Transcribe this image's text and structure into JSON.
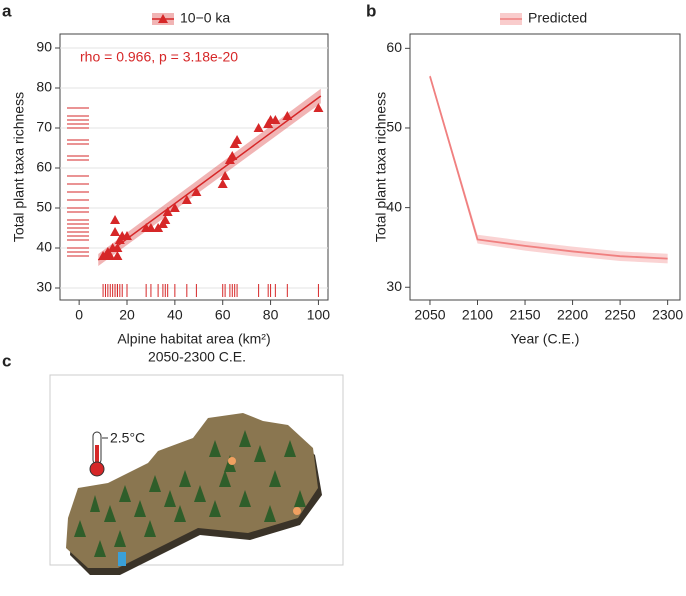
{
  "panel_labels": [
    "a",
    "b",
    "c"
  ],
  "chart_data": [
    {
      "type": "scatter",
      "annotation": "rho = 0.966, p = 3.18e-20",
      "x_label": "Alpine habitat area (km²)",
      "y_label": "Total plant taxa richness",
      "xlim": [
        -8,
        104
      ],
      "ylim": [
        27,
        93.5
      ],
      "xticks": [
        0,
        20,
        40,
        60,
        80,
        100
      ],
      "yticks": [
        30,
        40,
        50,
        60,
        70,
        80,
        90
      ],
      "grid": true,
      "rug": true,
      "series": [
        {
          "name": "10−0 ka",
          "color": "#d62728",
          "x": [
            10,
            11,
            12,
            13,
            14,
            15,
            15,
            16,
            16,
            17,
            18,
            20,
            28,
            30,
            33,
            35,
            36,
            37,
            40,
            45,
            49,
            60,
            61,
            63,
            64,
            65,
            66,
            75,
            79,
            80,
            82,
            87,
            100
          ],
          "values": [
            38,
            38,
            39,
            38,
            40,
            47,
            44,
            38,
            40,
            42,
            43,
            43,
            45,
            45,
            45,
            46,
            47,
            49,
            50,
            52,
            54,
            56,
            58,
            62,
            63,
            66,
            67,
            70,
            71,
            72,
            72,
            73,
            75
          ]
        }
      ],
      "fit": {
        "x": [
          8,
          101
        ],
        "values": [
          37,
          78
        ],
        "lower": [
          35.5,
          76.2
        ],
        "upper": [
          38.5,
          79.8
        ]
      }
    },
    {
      "type": "line",
      "x_label": "Year (C.E.)",
      "y_label": "Total plant taxa richness",
      "xlim": [
        2029,
        2313
      ],
      "ylim": [
        28.4,
        61.8
      ],
      "xticks": [
        2050,
        2100,
        2150,
        2200,
        2250,
        2300
      ],
      "yticks": [
        30,
        40,
        50,
        60
      ],
      "grid": false,
      "x": [
        2050,
        2100,
        2150,
        2200,
        2250,
        2300
      ],
      "series": [
        {
          "name": "Predicted",
          "color": "#f08080",
          "values": [
            56.5,
            36,
            35.2,
            34.5,
            33.9,
            33.6
          ],
          "lower": [
            56.2,
            35.5,
            34.6,
            33.9,
            33.3,
            33
          ],
          "upper": [
            56.8,
            36.6,
            35.8,
            35.1,
            34.5,
            34.2
          ]
        }
      ]
    }
  ],
  "illustration": {
    "title": "2050-2300 C.E.",
    "temperature": "2.5°C"
  }
}
